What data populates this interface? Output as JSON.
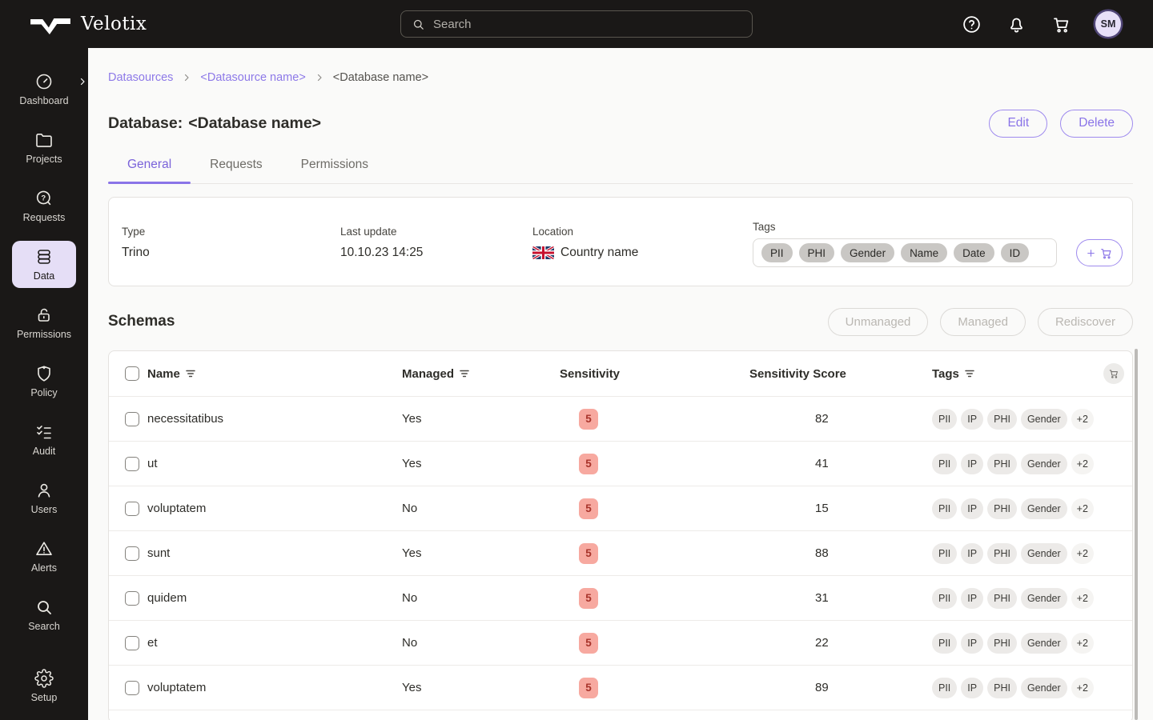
{
  "topbar": {
    "logo_text": "Velotix",
    "search": {
      "placeholder": "Search"
    },
    "avatar_initials": "SM"
  },
  "sidebar": {
    "items": [
      {
        "label": "Dashboard",
        "icon": "dashboard",
        "active": false,
        "has_chevron": true
      },
      {
        "label": "Projects",
        "icon": "projects",
        "active": false
      },
      {
        "label": "Requests",
        "icon": "requests",
        "active": false
      },
      {
        "label": "Data",
        "icon": "data",
        "active": true
      },
      {
        "label": "Permissions",
        "icon": "permissions",
        "active": false
      },
      {
        "label": "Policy",
        "icon": "policy",
        "active": false
      },
      {
        "label": "Audit",
        "icon": "audit",
        "active": false
      },
      {
        "label": "Users",
        "icon": "users",
        "active": false
      },
      {
        "label": "Alerts",
        "icon": "alerts",
        "active": false
      },
      {
        "label": "Search",
        "icon": "search",
        "active": false
      }
    ],
    "footer_items": [
      {
        "label": "Setup",
        "icon": "setup",
        "active": false
      }
    ]
  },
  "breadcrumb": [
    {
      "label": "Datasources",
      "link": true
    },
    {
      "label": "<Datasource name>",
      "link": true
    },
    {
      "label": "<Database name>",
      "link": false
    }
  ],
  "header": {
    "title_prefix": "Database:",
    "title_name": "<Database name>",
    "actions": [
      {
        "label": "Edit"
      },
      {
        "label": "Delete"
      }
    ]
  },
  "tabs": [
    {
      "label": "General",
      "active": true
    },
    {
      "label": "Requests",
      "active": false
    },
    {
      "label": "Permissions",
      "active": false
    }
  ],
  "info_card": {
    "fields": [
      {
        "label": "Type",
        "value": "Trino"
      },
      {
        "label": "Last update",
        "value": "10.10.23 14:25"
      },
      {
        "label": "Location",
        "value": "Country name",
        "flag": "uk"
      }
    ],
    "tags_label": "Tags",
    "tags": [
      "PII",
      "PHI",
      "Gender",
      "Name",
      "Date",
      "ID"
    ]
  },
  "schemas": {
    "heading": "Schemas",
    "actions": [
      {
        "label": "Unmanaged",
        "disabled": true
      },
      {
        "label": "Managed",
        "disabled": true
      },
      {
        "label": "Rediscover",
        "disabled": true
      }
    ],
    "table": {
      "columns": [
        {
          "label": "Name",
          "filter": true
        },
        {
          "label": "Managed",
          "filter": true
        },
        {
          "label": "Sensitivity",
          "filter": false
        },
        {
          "label": "Sensitivity Score",
          "filter": false
        },
        {
          "label": "Tags",
          "filter": true
        }
      ],
      "rows": [
        {
          "name": "necessitatibus",
          "managed": "Yes",
          "sensitivity": "5",
          "score": "82",
          "tags": [
            "PII",
            "IP",
            "PHI",
            "Gender"
          ],
          "more_tags": "+2"
        },
        {
          "name": "ut",
          "managed": "Yes",
          "sensitivity": "5",
          "score": "41",
          "tags": [
            "PII",
            "IP",
            "PHI",
            "Gender"
          ],
          "more_tags": "+2"
        },
        {
          "name": "voluptatem",
          "managed": "No",
          "sensitivity": "5",
          "score": "15",
          "tags": [
            "PII",
            "IP",
            "PHI",
            "Gender"
          ],
          "more_tags": "+2"
        },
        {
          "name": "sunt",
          "managed": "Yes",
          "sensitivity": "5",
          "score": "88",
          "tags": [
            "PII",
            "IP",
            "PHI",
            "Gender"
          ],
          "more_tags": "+2"
        },
        {
          "name": "quidem",
          "managed": "No",
          "sensitivity": "5",
          "score": "31",
          "tags": [
            "PII",
            "IP",
            "PHI",
            "Gender"
          ],
          "more_tags": "+2"
        },
        {
          "name": "et",
          "managed": "No",
          "sensitivity": "5",
          "score": "22",
          "tags": [
            "PII",
            "IP",
            "PHI",
            "Gender"
          ],
          "more_tags": "+2"
        },
        {
          "name": "voluptatem",
          "managed": "Yes",
          "sensitivity": "5",
          "score": "89",
          "tags": [
            "PII",
            "IP",
            "PHI",
            "Gender"
          ],
          "more_tags": "+2"
        }
      ]
    }
  },
  "colors": {
    "accent_purple": "#8a74e8",
    "topbar_bg": "#1a1817",
    "active_nav_bg": "#e5def6",
    "sensitivity_badge_bg": "#f7a9a0",
    "sensitivity_badge_text": "#a8332a",
    "card_tag_pill_bg": "#c9c7c4",
    "row_tag_pill_bg": "#eceae8"
  }
}
